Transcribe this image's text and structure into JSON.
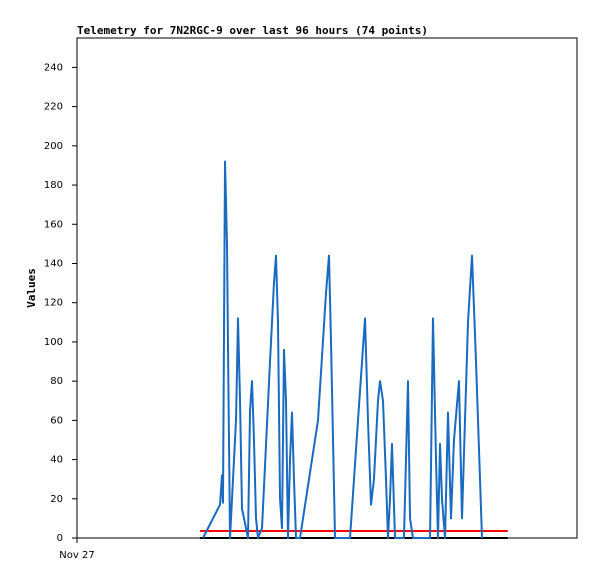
{
  "chart_data": {
    "type": "line",
    "title": "Telemetry for 7N2RGC-9 over last 96 hours (74 points)",
    "ylabel": "Values",
    "xlim": [
      0,
      96
    ],
    "xticks": [
      {
        "value": 0,
        "label": "Nov 27"
      }
    ],
    "ylim": [
      0,
      255
    ],
    "yticks": [
      0,
      20,
      40,
      60,
      80,
      100,
      120,
      140,
      160,
      180,
      200,
      220,
      240
    ],
    "series": [
      {
        "color": "#1a6ac0",
        "x": [
          24.19,
          27.46,
          27.84,
          28.03,
          28.42,
          28.8,
          28.99,
          29.38,
          30.53,
          30.91,
          31.3,
          31.68,
          32.45,
          32.83,
          33.22,
          33.6,
          33.98,
          34.37,
          34.75,
          35.52,
          37.06,
          37.82,
          38.21,
          38.59,
          38.98,
          39.36,
          39.74,
          40.13,
          40.51,
          40.9,
          41.28,
          41.66,
          42.05,
          42.82,
          45.12,
          46.27,
          47.81,
          48.38,
          48.77,
          49.54,
          52.42,
          53.95,
          55.3,
          55.87,
          56.45,
          57.02,
          57.79,
          58.18,
          58.75,
          59.33,
          59.71,
          60.1,
          60.48,
          61.06,
          62.78,
          63.55,
          63.94,
          64.51,
          67.78,
          68.35,
          68.93,
          69.31,
          69.7,
          70.08,
          70.66,
          71.23,
          71.81,
          72.38,
          73.34,
          73.92,
          75.07,
          75.84,
          76.61,
          77.76
        ],
        "values": [
          0,
          17,
          32,
          18,
          192,
          150,
          98,
          0,
          60,
          112,
          70,
          15,
          5,
          0,
          65,
          80,
          50,
          10,
          0,
          5,
          90,
          130,
          144,
          110,
          20,
          5,
          96,
          70,
          0,
          40,
          64,
          30,
          0,
          0,
          40,
          60,
          125,
          144,
          100,
          0,
          0,
          60,
          112,
          60,
          17,
          30,
          70,
          80,
          70,
          30,
          0,
          20,
          48,
          0,
          0,
          80,
          10,
          0,
          0,
          112,
          40,
          0,
          48,
          20,
          0,
          64,
          10,
          50,
          80,
          10,
          110,
          144,
          90,
          0
        ]
      },
      {
        "color": "#ff0000",
        "x": [
          23.6,
          82.7
        ],
        "values": [
          3.6,
          3.6
        ]
      },
      {
        "color": "#000000",
        "x": [
          23.6,
          82.7
        ],
        "values": [
          0,
          0
        ]
      }
    ]
  }
}
